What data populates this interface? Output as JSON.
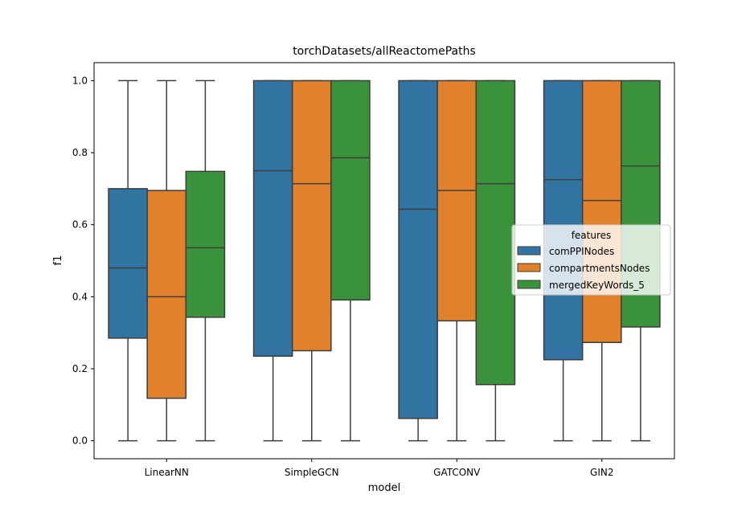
{
  "chart_data": {
    "type": "box",
    "title": "torchDatasets/allReactomePaths",
    "xlabel": "model",
    "ylabel": "f1",
    "categories": [
      "LinearNN",
      "SimpleGCN",
      "GATCONV",
      "GIN2"
    ],
    "ylim": [
      -0.05,
      1.05
    ],
    "yticks": [
      "0.0",
      "0.2",
      "0.4",
      "0.6",
      "0.8",
      "1.0"
    ],
    "legend": {
      "title": "features",
      "placement": "center-right"
    },
    "series": [
      {
        "name": "comPPINodes",
        "color": "#3274a1",
        "boxes": [
          {
            "min": 0.0,
            "q1": 0.285,
            "median": 0.48,
            "q3": 0.7,
            "max": 1.0
          },
          {
            "min": 0.0,
            "q1": 0.235,
            "median": 0.75,
            "q3": 1.0,
            "max": 1.0
          },
          {
            "min": 0.0,
            "q1": 0.062,
            "median": 0.643,
            "q3": 1.0,
            "max": 1.0
          },
          {
            "min": 0.0,
            "q1": 0.225,
            "median": 0.725,
            "q3": 1.0,
            "max": 1.0
          }
        ]
      },
      {
        "name": "compartmentsNodes",
        "color": "#e1812c",
        "boxes": [
          {
            "min": 0.0,
            "q1": 0.118,
            "median": 0.4,
            "q3": 0.695,
            "max": 1.0
          },
          {
            "min": 0.0,
            "q1": 0.25,
            "median": 0.714,
            "q3": 1.0,
            "max": 1.0
          },
          {
            "min": 0.0,
            "q1": 0.333,
            "median": 0.695,
            "q3": 1.0,
            "max": 1.0
          },
          {
            "min": 0.0,
            "q1": 0.273,
            "median": 0.667,
            "q3": 1.0,
            "max": 1.0
          }
        ]
      },
      {
        "name": "mergedKeyWords_5",
        "color": "#3a923a",
        "boxes": [
          {
            "min": 0.0,
            "q1": 0.343,
            "median": 0.536,
            "q3": 0.748,
            "max": 1.0
          },
          {
            "min": 0.0,
            "q1": 0.391,
            "median": 0.786,
            "q3": 1.0,
            "max": 1.0
          },
          {
            "min": 0.0,
            "q1": 0.156,
            "median": 0.714,
            "q3": 1.0,
            "max": 1.0
          },
          {
            "min": 0.0,
            "q1": 0.316,
            "median": 0.763,
            "q3": 1.0,
            "max": 1.0
          }
        ]
      }
    ]
  }
}
